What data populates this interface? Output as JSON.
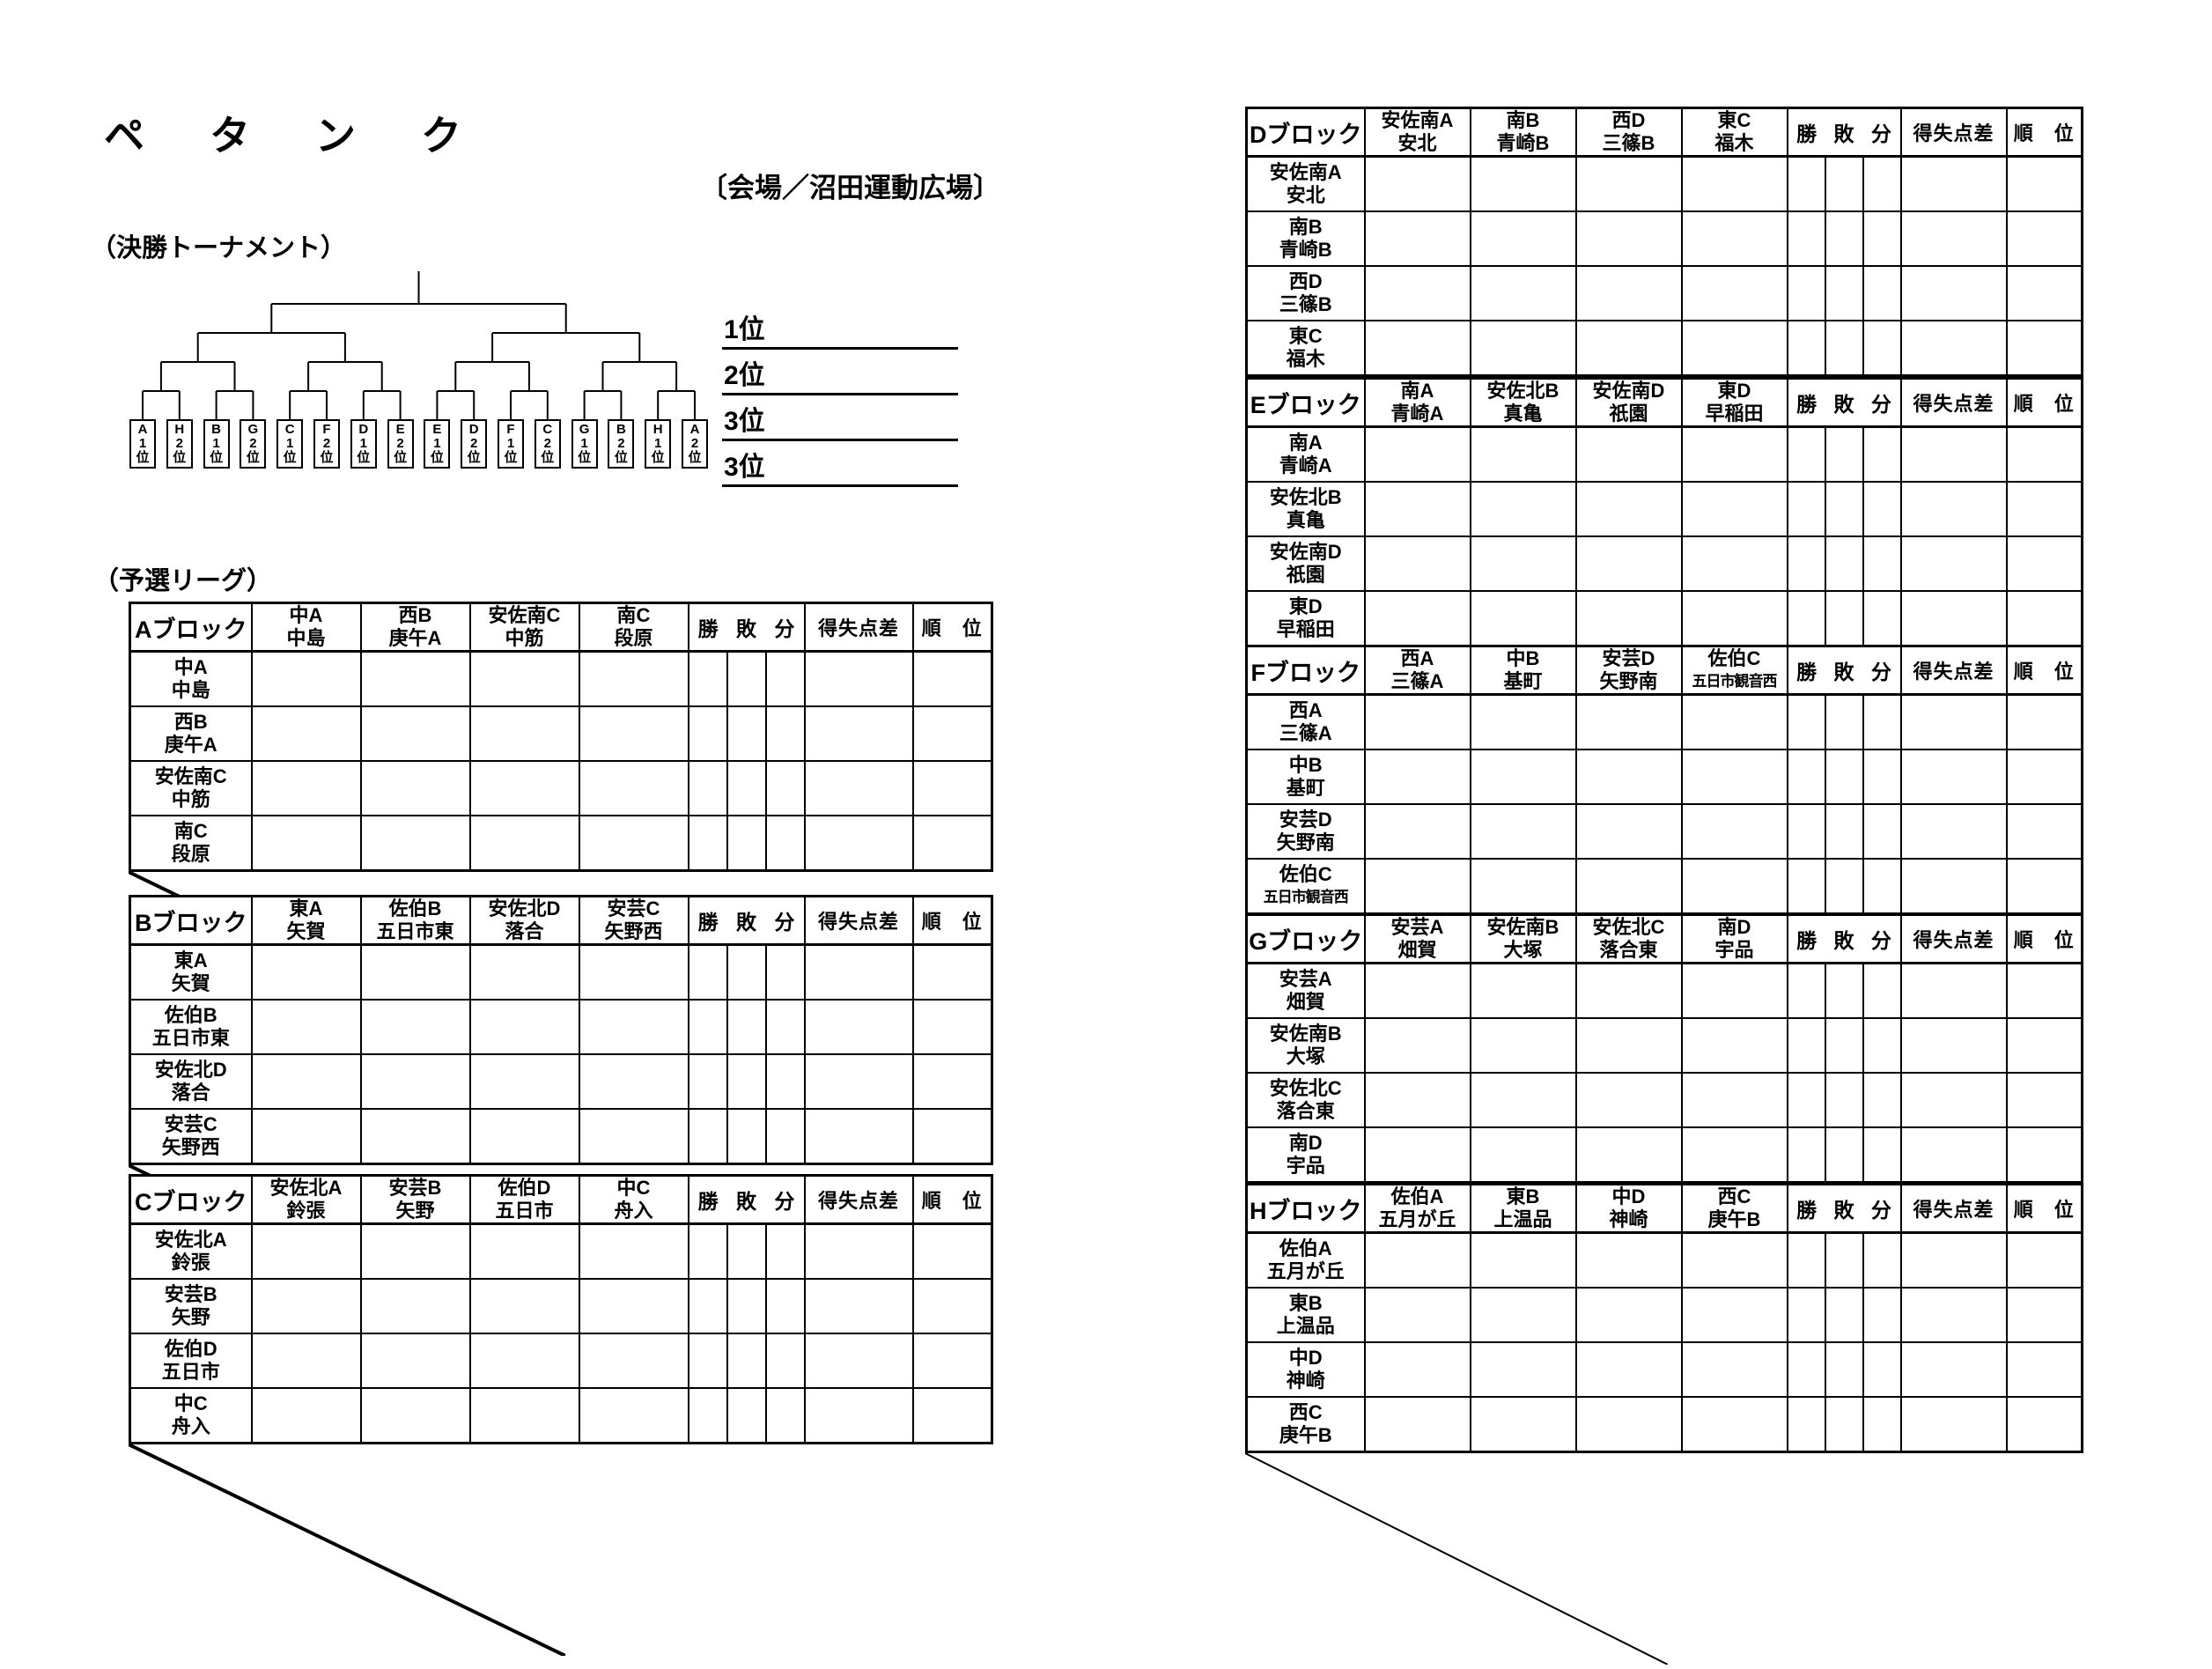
{
  "page": {
    "title": "ペ　タ　ン　ク",
    "venue": "〔会場／沼田運動広場〕"
  },
  "sections": {
    "bracket_label": "（決勝トーナメント）",
    "league_label": "（予選リーグ）"
  },
  "bracket": {
    "leaves": [
      "A1位",
      "H2位",
      "B1位",
      "G2位",
      "C1位",
      "F2位",
      "D1位",
      "E2位",
      "E1位",
      "D2位",
      "F1位",
      "C2位",
      "G1位",
      "B2位",
      "H1位",
      "A2位"
    ],
    "results": [
      "1位",
      "2位",
      "3位",
      "3位"
    ]
  },
  "league": {
    "stats_cols": [
      "勝",
      "敗",
      "分"
    ],
    "goal_diff_label": "得失点差",
    "rank_label": "順　位",
    "blocks": [
      {
        "id": "A",
        "name": "Aブロック",
        "teams": [
          {
            "line1": "中A",
            "line2": "中島"
          },
          {
            "line1": "西B",
            "line2": "庚午A"
          },
          {
            "line1": "安佐南C",
            "line2": "中筋"
          },
          {
            "line1": "南C",
            "line2": "段原"
          }
        ]
      },
      {
        "id": "B",
        "name": "Bブロック",
        "teams": [
          {
            "line1": "東A",
            "line2": "矢賀"
          },
          {
            "line1": "佐伯B",
            "line2": "五日市東"
          },
          {
            "line1": "安佐北D",
            "line2": "落合"
          },
          {
            "line1": "安芸C",
            "line2": "矢野西"
          }
        ]
      },
      {
        "id": "C",
        "name": "Cブロック",
        "teams": [
          {
            "line1": "安佐北A",
            "line2": "鈴張"
          },
          {
            "line1": "安芸B",
            "line2": "矢野"
          },
          {
            "line1": "佐伯D",
            "line2": "五日市"
          },
          {
            "line1": "中C",
            "line2": "舟入"
          }
        ]
      },
      {
        "id": "D",
        "name": "Dブロック",
        "teams": [
          {
            "line1": "安佐南A",
            "line2": "安北"
          },
          {
            "line1": "南B",
            "line2": "青崎B"
          },
          {
            "line1": "西D",
            "line2": "三篠B"
          },
          {
            "line1": "東C",
            "line2": "福木"
          }
        ]
      },
      {
        "id": "E",
        "name": "Eブロック",
        "teams": [
          {
            "line1": "南A",
            "line2": "青崎A"
          },
          {
            "line1": "安佐北B",
            "line2": "真亀"
          },
          {
            "line1": "安佐南D",
            "line2": "祇園"
          },
          {
            "line1": "東D",
            "line2": "早稲田"
          }
        ]
      },
      {
        "id": "F",
        "name": "Fブロック",
        "teams": [
          {
            "line1": "西A",
            "line2": "三篠A"
          },
          {
            "line1": "中B",
            "line2": "基町"
          },
          {
            "line1": "安芸D",
            "line2": "矢野南"
          },
          {
            "line1": "佐伯C",
            "line2": "五日市観音西"
          }
        ]
      },
      {
        "id": "G",
        "name": "Gブロック",
        "teams": [
          {
            "line1": "安芸A",
            "line2": "畑賀"
          },
          {
            "line1": "安佐南B",
            "line2": "大塚"
          },
          {
            "line1": "安佐北C",
            "line2": "落合東"
          },
          {
            "line1": "南D",
            "line2": "宇品"
          }
        ]
      },
      {
        "id": "H",
        "name": "Hブロック",
        "teams": [
          {
            "line1": "佐伯A",
            "line2": "五月が丘"
          },
          {
            "line1": "東B",
            "line2": "上温品"
          },
          {
            "line1": "中D",
            "line2": "神崎"
          },
          {
            "line1": "西C",
            "line2": "庚午B"
          }
        ]
      }
    ]
  }
}
